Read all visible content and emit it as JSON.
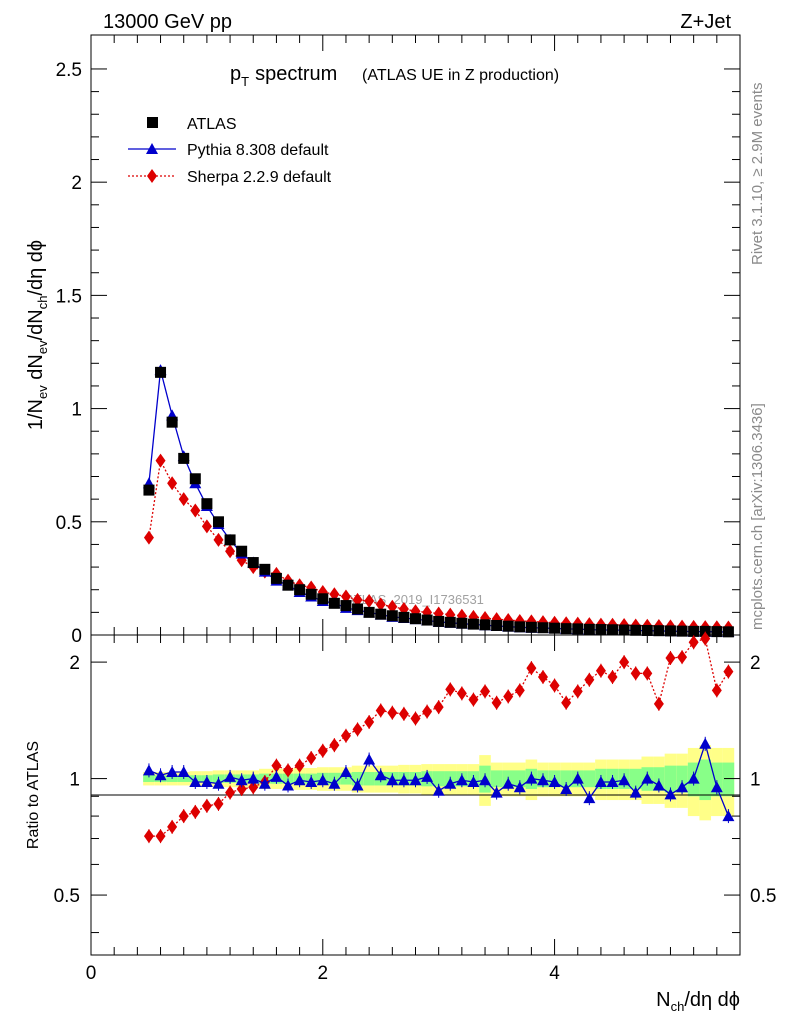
{
  "header": {
    "left": "13000 GeV pp",
    "right": "Z+Jet"
  },
  "side": {
    "top": "Rivet 3.1.10, ≥ 2.9M events",
    "bottom": "mcplots.cern.ch [arXiv:1306.3436]"
  },
  "watermark": "ATLAS_2019_I1736531",
  "chart_data": [
    {
      "type": "scatter",
      "title_main": "p",
      "title_sub": "T",
      "title_rest": "spectrum",
      "title_note": "(ATLAS UE in Z production)",
      "ylabel": "1/N_ev dN_ev/dN_ch/dη dϕ",
      "xlim": [
        0,
        5.6
      ],
      "ylim": [
        0,
        2.65
      ],
      "yticks": [
        "0",
        "0.5",
        "1",
        "1.5",
        "2",
        "2.5"
      ],
      "x": [
        0.5,
        0.6,
        0.7,
        0.8,
        0.9,
        1.0,
        1.1,
        1.2,
        1.3,
        1.4,
        1.5,
        1.6,
        1.7,
        1.8,
        1.9,
        2.0,
        2.1,
        2.2,
        2.3,
        2.4,
        2.5,
        2.6,
        2.7,
        2.8,
        2.9,
        3.0,
        3.1,
        3.2,
        3.3,
        3.4,
        3.5,
        3.6,
        3.7,
        3.8,
        3.9,
        4.0,
        4.1,
        4.2,
        4.3,
        4.4,
        4.5,
        4.6,
        4.7,
        4.8,
        4.9,
        5.0,
        5.1,
        5.2,
        5.3,
        5.4,
        5.5
      ],
      "series": [
        {
          "name": "ATLAS",
          "color": "#000000",
          "marker": "square",
          "values": [
            0.64,
            1.16,
            0.94,
            0.78,
            0.69,
            0.58,
            0.5,
            0.42,
            0.37,
            0.32,
            0.29,
            0.25,
            0.22,
            0.2,
            0.18,
            0.16,
            0.14,
            0.13,
            0.115,
            0.1,
            0.092,
            0.085,
            0.078,
            0.072,
            0.066,
            0.06,
            0.056,
            0.052,
            0.048,
            0.045,
            0.042,
            0.039,
            0.036,
            0.034,
            0.032,
            0.03,
            0.028,
            0.027,
            0.025,
            0.024,
            0.023,
            0.022,
            0.021,
            0.02,
            0.019,
            0.018,
            0.017,
            0.016,
            0.016,
            0.015,
            0.014
          ]
        },
        {
          "name": "Pythia 8.308 default",
          "color": "#0000cc",
          "marker": "triangle",
          "values": [
            0.67,
            1.17,
            0.97,
            0.79,
            0.67,
            0.57,
            0.49,
            0.42,
            0.36,
            0.32,
            0.28,
            0.24,
            0.22,
            0.19,
            0.17,
            0.15,
            0.14,
            0.12,
            0.11,
            0.1,
            0.09,
            0.08,
            0.075,
            0.07,
            0.064,
            0.058,
            0.054,
            0.05,
            0.047,
            0.043,
            0.04,
            0.037,
            0.034,
            0.032,
            0.031,
            0.029,
            0.027,
            0.026,
            0.024,
            0.022,
            0.022,
            0.021,
            0.02,
            0.019,
            0.018,
            0.017,
            0.016,
            0.015,
            0.015,
            0.014,
            0.013
          ]
        },
        {
          "name": "Sherpa 2.2.9 default",
          "color": "#dd0000",
          "marker": "diamond",
          "values": [
            0.43,
            0.77,
            0.67,
            0.6,
            0.55,
            0.48,
            0.42,
            0.37,
            0.33,
            0.3,
            0.28,
            0.27,
            0.24,
            0.22,
            0.21,
            0.19,
            0.18,
            0.17,
            0.155,
            0.15,
            0.135,
            0.125,
            0.115,
            0.105,
            0.1,
            0.095,
            0.09,
            0.085,
            0.08,
            0.075,
            0.07,
            0.066,
            0.062,
            0.06,
            0.057,
            0.054,
            0.052,
            0.05,
            0.048,
            0.046,
            0.045,
            0.044,
            0.042,
            0.041,
            0.04,
            0.038,
            0.037,
            0.036,
            0.035,
            0.034,
            0.033
          ]
        }
      ]
    },
    {
      "type": "scatter",
      "ylabel": "Ratio to ATLAS",
      "xlabel": "N_ch/dη dϕ",
      "xlim": [
        0,
        5.6
      ],
      "ylim": [
        0.35,
        2.35
      ],
      "xticks": [
        "0",
        "2",
        "4"
      ],
      "yticks": [
        "0.5",
        "1",
        "2"
      ],
      "x": [
        0.5,
        0.6,
        0.7,
        0.8,
        0.9,
        1.0,
        1.1,
        1.2,
        1.3,
        1.4,
        1.5,
        1.6,
        1.7,
        1.8,
        1.9,
        2.0,
        2.1,
        2.2,
        2.3,
        2.4,
        2.5,
        2.6,
        2.7,
        2.8,
        2.9,
        3.0,
        3.1,
        3.2,
        3.3,
        3.4,
        3.5,
        3.6,
        3.7,
        3.8,
        3.9,
        4.0,
        4.1,
        4.2,
        4.3,
        4.4,
        4.5,
        4.6,
        4.7,
        4.8,
        4.9,
        5.0,
        5.1,
        5.2,
        5.3,
        5.4,
        5.5
      ],
      "band_stat": [
        0.02,
        0.02,
        0.02,
        0.02,
        0.02,
        0.02,
        0.025,
        0.025,
        0.025,
        0.025,
        0.03,
        0.03,
        0.03,
        0.03,
        0.03,
        0.035,
        0.035,
        0.035,
        0.04,
        0.04,
        0.04,
        0.04,
        0.04,
        0.04,
        0.045,
        0.045,
        0.045,
        0.045,
        0.045,
        0.08,
        0.05,
        0.05,
        0.05,
        0.06,
        0.05,
        0.05,
        0.05,
        0.05,
        0.05,
        0.06,
        0.06,
        0.06,
        0.06,
        0.07,
        0.07,
        0.08,
        0.08,
        0.1,
        0.12,
        0.1,
        0.1
      ],
      "band_total": [
        0.04,
        0.04,
        0.04,
        0.04,
        0.045,
        0.045,
        0.05,
        0.05,
        0.05,
        0.05,
        0.06,
        0.06,
        0.06,
        0.065,
        0.065,
        0.07,
        0.07,
        0.07,
        0.08,
        0.08,
        0.08,
        0.08,
        0.085,
        0.085,
        0.09,
        0.09,
        0.09,
        0.09,
        0.09,
        0.15,
        0.1,
        0.1,
        0.1,
        0.12,
        0.1,
        0.1,
        0.1,
        0.1,
        0.1,
        0.12,
        0.12,
        0.12,
        0.12,
        0.14,
        0.14,
        0.16,
        0.16,
        0.2,
        0.22,
        0.2,
        0.2
      ],
      "series": [
        {
          "name": "Pythia 8.308 default",
          "color": "#0000cc",
          "marker": "triangle",
          "values": [
            1.05,
            1.02,
            1.04,
            1.04,
            0.98,
            0.98,
            0.97,
            1.01,
            0.99,
            1.0,
            0.97,
            1.01,
            0.96,
            0.99,
            0.98,
            0.99,
            0.97,
            1.04,
            0.96,
            1.12,
            1.02,
            0.99,
            0.99,
            0.99,
            1.01,
            0.93,
            0.97,
            0.99,
            0.98,
            0.99,
            0.92,
            0.97,
            0.95,
            1.0,
            0.99,
            0.98,
            0.94,
            1.0,
            0.89,
            0.98,
            0.98,
            0.99,
            0.92,
            1.0,
            0.96,
            0.91,
            0.95,
            1.0,
            1.23,
            0.95,
            0.8
          ]
        },
        {
          "name": "Sherpa 2.2.9 default",
          "color": "#dd0000",
          "marker": "diamond",
          "values": [
            0.71,
            0.71,
            0.75,
            0.8,
            0.82,
            0.85,
            0.86,
            0.92,
            0.94,
            0.95,
            0.98,
            1.08,
            1.05,
            1.08,
            1.13,
            1.18,
            1.22,
            1.29,
            1.34,
            1.4,
            1.5,
            1.48,
            1.47,
            1.43,
            1.49,
            1.53,
            1.7,
            1.66,
            1.6,
            1.68,
            1.57,
            1.63,
            1.69,
            1.93,
            1.83,
            1.74,
            1.57,
            1.68,
            1.8,
            1.9,
            1.83,
            2.0,
            1.87,
            1.87,
            1.56,
            2.05,
            2.06,
            2.25,
            2.3,
            1.69,
            1.89
          ]
        }
      ]
    }
  ]
}
